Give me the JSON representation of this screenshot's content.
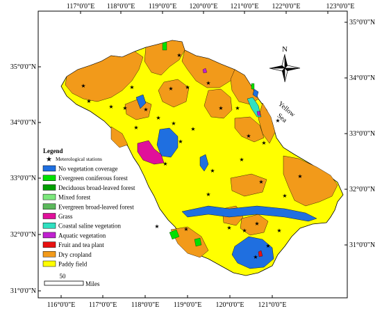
{
  "axes": {
    "top_lon": [
      "117°0'0\"E",
      "118°0'0\"E",
      "119°0'0\"E",
      "120°0'0\"E",
      "121°0'0\"E",
      "122°0'0\"E",
      "123°0'0\"E"
    ],
    "bottom_lon": [
      "116°0'0\"E",
      "117°0'0\"E",
      "118°0'0\"E",
      "119°0'0\"E",
      "120°0'0\"E",
      "121°0'0\"E"
    ],
    "left_lat": [
      "35°0'0\"N",
      "34°0'0\"N",
      "33°0'0\"N",
      "32°0'0\"N",
      "31°0'0\"N"
    ],
    "right_lat": [
      "35°0'0\"N",
      "34°0'0\"N",
      "33°0'0\"N",
      "32°0'0\"N",
      "31°0'0\"N"
    ]
  },
  "north_arrow": {
    "label": "N",
    "icon": "north-arrow-icon"
  },
  "sea_label": {
    "line1": "Yellow",
    "line2": "Sea"
  },
  "legend": {
    "title": "Legend",
    "station": {
      "label": "Meterological stations",
      "icon": "star-icon"
    },
    "items": [
      {
        "label": "No vegetation coverage",
        "color": "#1f6fe0"
      },
      {
        "label": "Evergreen coniferous forest",
        "color": "#00e000"
      },
      {
        "label": "Deciduous broad-leaved forest",
        "color": "#00a000"
      },
      {
        "label": "Mixed forest",
        "color": "#7ce87c"
      },
      {
        "label": "Evergreen broad-leaved forest",
        "color": "#5cb85c"
      },
      {
        "label": "Grass",
        "color": "#e0109a"
      },
      {
        "label": "Coastal saline vegetation",
        "color": "#30e0c0"
      },
      {
        "label": "Aquatic vegetation",
        "color": "#c020d0"
      },
      {
        "label": "Fruit and tea plant",
        "color": "#e81010"
      },
      {
        "label": "Dry cropland",
        "color": "#f29a1a"
      },
      {
        "label": "Paddy field",
        "color": "#ffff00"
      }
    ]
  },
  "scale_bar": {
    "value": "50",
    "unit": "Miles"
  }
}
